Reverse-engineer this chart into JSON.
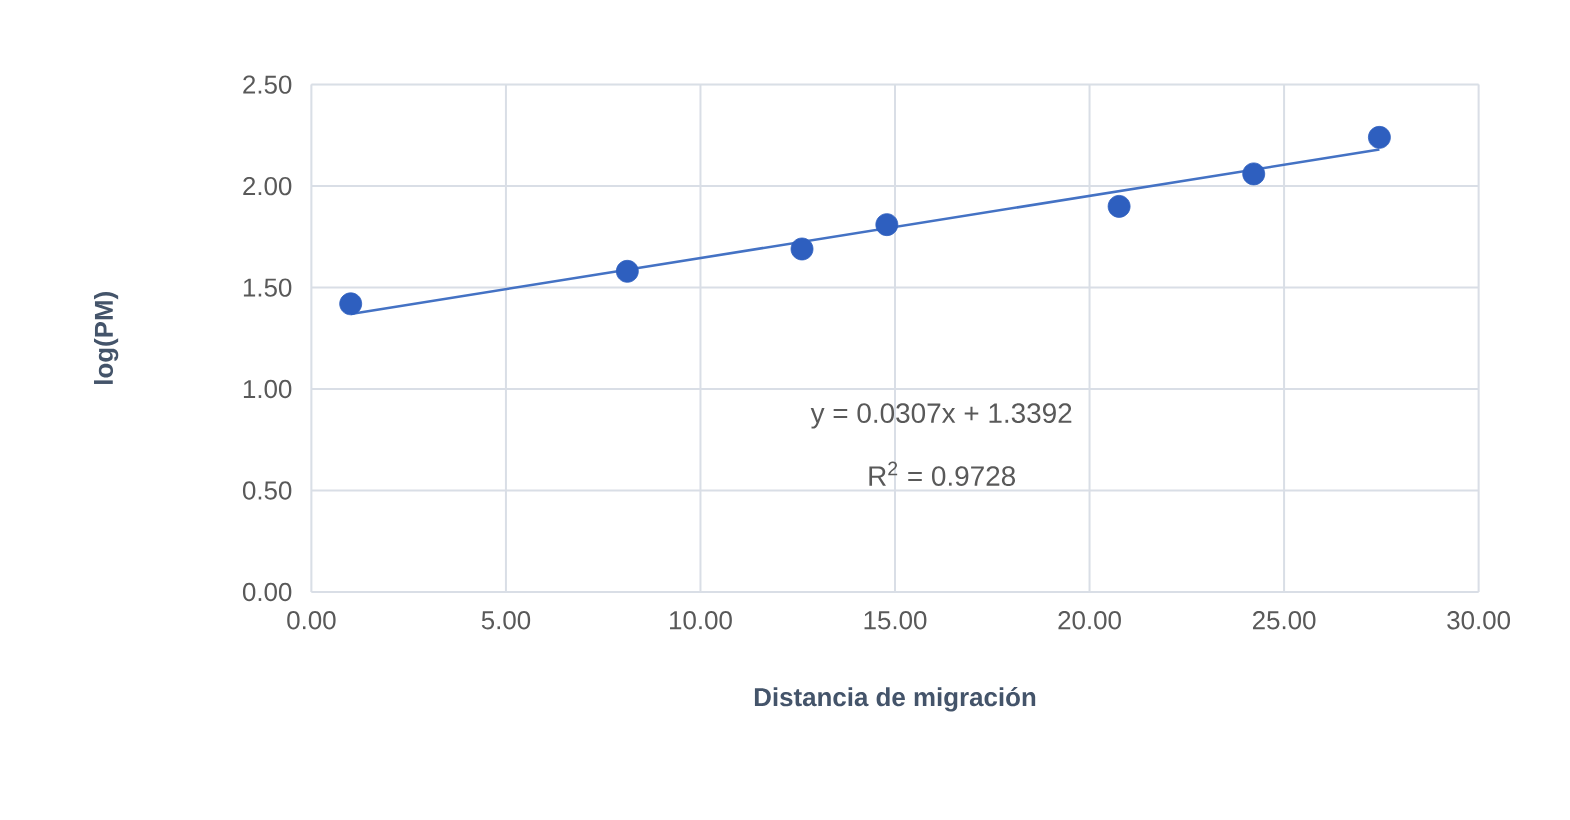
{
  "chart_data": {
    "type": "scatter",
    "xlabel": "Distancia de migración",
    "ylabel": "log(PM)",
    "series": [
      {
        "color": "#2e5fbf",
        "marker": "circle",
        "x": [
          1.01,
          8.12,
          12.61,
          14.79,
          20.76,
          24.22,
          27.45
        ],
        "values": [
          1.42,
          1.58,
          1.69,
          1.81,
          1.9,
          2.06,
          2.24
        ]
      },
      {
        "type": "line",
        "color": "#4472c4",
        "x": [
          1.01,
          27.45
        ],
        "values": [
          1.37,
          2.18
        ]
      }
    ],
    "annotations": [
      "y = 0.0307x + 1.3392",
      "R$^{2}$ = 0.9728"
    ],
    "xlim": [
      0,
      30
    ],
    "ylim": [
      0,
      2.5
    ],
    "xticks": [
      {
        "value": 0,
        "label": "0.00"
      },
      {
        "value": 5,
        "label": "5.00"
      },
      {
        "value": 10,
        "label": "10.00"
      },
      {
        "value": 15,
        "label": "15.00"
      },
      {
        "value": 20,
        "label": "20.00"
      },
      {
        "value": 25,
        "label": "25.00"
      },
      {
        "value": 30,
        "label": "30.00"
      }
    ],
    "yticks": [
      {
        "value": 0,
        "label": "0.00"
      },
      {
        "value": 0.5,
        "label": "0.50"
      },
      {
        "value": 1,
        "label": "1.00"
      },
      {
        "value": 1.5,
        "label": "1.50"
      },
      {
        "value": 2,
        "label": "2.00"
      },
      {
        "value": 2.5,
        "label": "2.50"
      }
    ],
    "grid": true
  }
}
